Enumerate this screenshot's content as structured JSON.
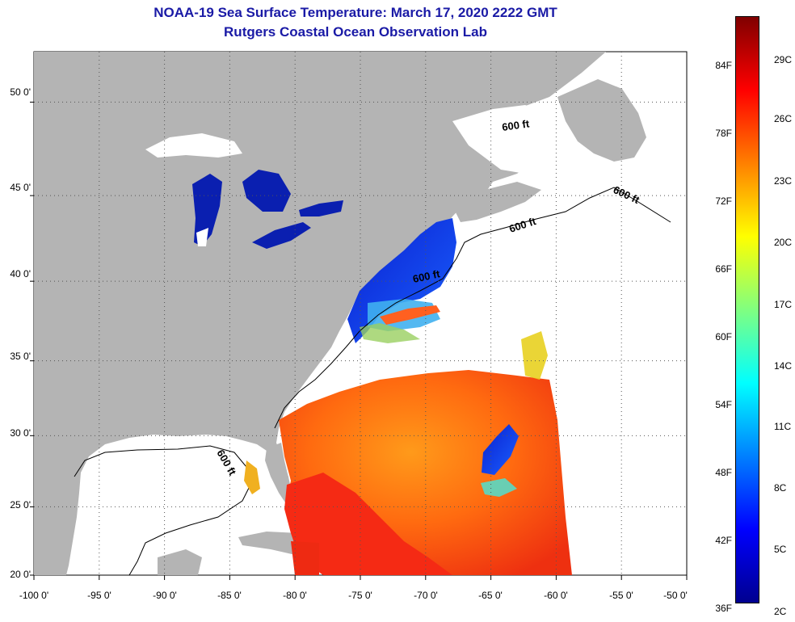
{
  "title": "NOAA-19 Sea Surface Temperature:  March 17, 2020 2222 GMT",
  "subtitle": "Rutgers Coastal Ocean Observation Lab",
  "map": {
    "lon_range": [
      -100,
      -50
    ],
    "lat_range": [
      20,
      52.5
    ],
    "lon_ticks": [
      "-100 0'",
      "-95 0'",
      "-90 0'",
      "-85 0'",
      "-80 0'",
      "-75 0'",
      "-70 0'",
      "-65 0'",
      "-60 0'",
      "-55 0'",
      "-50 0'"
    ],
    "lat_ticks": [
      "50 0'",
      "45 0'",
      "40 0'",
      "35 0'",
      "30 0'",
      "25 0'",
      "20 0'"
    ],
    "contour_labels": [
      "600 ft",
      "600 ft",
      "600 ft",
      "600 ft",
      "600 ft"
    ],
    "colors": {
      "land": "#b4b4b4",
      "nodata": "#ffffff",
      "grid": "#555555"
    }
  },
  "colorbar": {
    "fahrenheit": [
      "84F",
      "78F",
      "72F",
      "66F",
      "60F",
      "54F",
      "48F",
      "42F",
      "36F"
    ],
    "celsius": [
      "29C",
      "26C",
      "23C",
      "20C",
      "17C",
      "14C",
      "11C",
      "8C",
      "5C",
      "2C"
    ],
    "gradient": [
      "#800000",
      "#ff0000",
      "#ff8000",
      "#ffff00",
      "#80ff80",
      "#00ffff",
      "#0080ff",
      "#0000ff",
      "#00008f"
    ]
  }
}
